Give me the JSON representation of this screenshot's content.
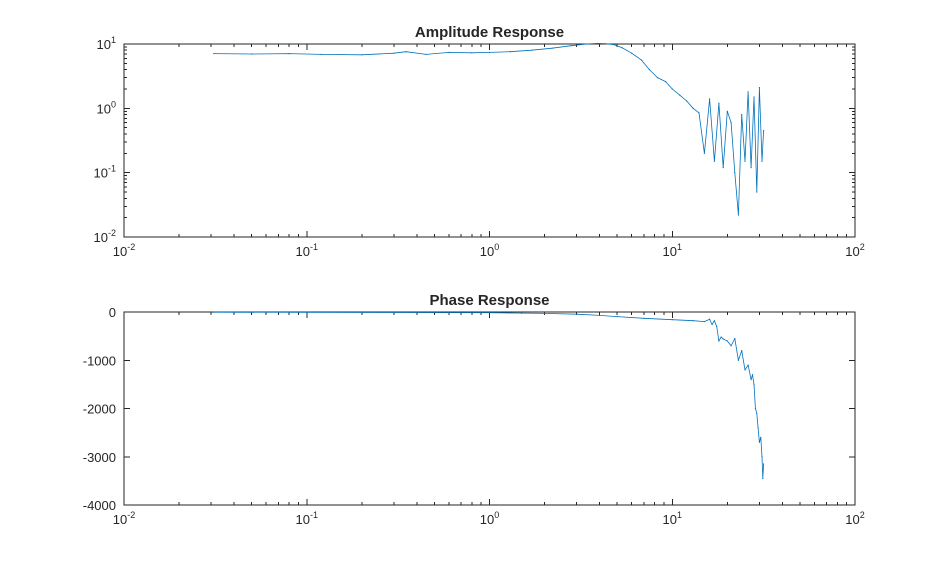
{
  "chart_data": [
    {
      "type": "line",
      "title": "Amplitude Response",
      "xscale": "log",
      "yscale": "log",
      "xlim": [
        0.01,
        100
      ],
      "ylim": [
        0.01,
        10
      ],
      "grid": false,
      "color": "#0072BD",
      "x_tick_labels": [
        {
          "base": "10",
          "exp": "-2"
        },
        {
          "base": "10",
          "exp": "-1"
        },
        {
          "base": "10",
          "exp": "0"
        },
        {
          "base": "10",
          "exp": "1"
        },
        {
          "base": "10",
          "exp": "2"
        }
      ],
      "y_tick_labels": [
        {
          "base": "10",
          "exp": "1"
        },
        {
          "base": "10",
          "exp": "0"
        },
        {
          "base": "10",
          "exp": "-1"
        },
        {
          "base": "10",
          "exp": "-2"
        }
      ],
      "series": [
        {
          "x": [
            0.031,
            0.05,
            0.08,
            0.12,
            0.2,
            0.3,
            0.35,
            0.45,
            0.6,
            0.8,
            1.0,
            1.3,
            1.7,
            2.2,
            2.8,
            3.4,
            3.9,
            4.3,
            4.8,
            5.3,
            6.0,
            6.8,
            7.5,
            8.3,
            9.2,
            10.0,
            11.0,
            12.0,
            13.0,
            14.0,
            15.0,
            16.0,
            17.0,
            18.0,
            19.0,
            20.0,
            21.0,
            22.0,
            23.0,
            24.0,
            25.0,
            26.0,
            27.0,
            28.0,
            29.0,
            30.0,
            31.0,
            31.6
          ],
          "y": [
            7.1,
            7.0,
            7.1,
            6.9,
            6.8,
            7.2,
            7.6,
            6.9,
            7.4,
            7.3,
            7.4,
            7.6,
            8.0,
            8.6,
            9.4,
            10.0,
            10.2,
            10.1,
            9.8,
            8.8,
            7.2,
            5.6,
            4.0,
            3.0,
            2.6,
            2.0,
            1.6,
            1.3,
            1.0,
            0.85,
            0.2,
            1.4,
            0.15,
            1.2,
            0.12,
            0.9,
            0.6,
            0.1,
            0.022,
            0.8,
            0.15,
            1.8,
            0.12,
            1.5,
            0.05,
            2.1,
            0.15,
            0.45
          ]
        }
      ]
    },
    {
      "type": "line",
      "title": "Phase Response",
      "xscale": "log",
      "yscale": "linear",
      "xlim": [
        0.01,
        100
      ],
      "ylim": [
        -4000,
        0
      ],
      "grid": false,
      "color": "#0072BD",
      "x_tick_labels": [
        {
          "base": "10",
          "exp": "-2"
        },
        {
          "base": "10",
          "exp": "-1"
        },
        {
          "base": "10",
          "exp": "0"
        },
        {
          "base": "10",
          "exp": "1"
        },
        {
          "base": "10",
          "exp": "2"
        }
      ],
      "y_tick_labels": [
        "0",
        "-1000",
        "-2000",
        "-3000",
        "-4000"
      ],
      "series": [
        {
          "x": [
            0.031,
            0.1,
            0.3,
            0.6,
            1.0,
            1.5,
            2.0,
            3.0,
            4.0,
            5.0,
            7.0,
            10.0,
            13.0,
            15.0,
            16.0,
            16.5,
            17.0,
            17.5,
            18.0,
            18.5,
            19.0,
            20.0,
            21.0,
            22.0,
            23.0,
            24.0,
            25.0,
            26.0,
            27.0,
            27.5,
            28.0,
            28.5,
            29.0,
            29.5,
            30.0,
            30.5,
            31.0,
            31.3,
            31.6
          ],
          "y": [
            -5,
            -8,
            -10,
            -12,
            -15,
            -22,
            -30,
            -45,
            -70,
            -95,
            -130,
            -160,
            -180,
            -200,
            -150,
            -260,
            -180,
            -300,
            -600,
            -520,
            -560,
            -600,
            -700,
            -550,
            -1000,
            -800,
            -1200,
            -1100,
            -1400,
            -1300,
            -1500,
            -2000,
            -2100,
            -2400,
            -2700,
            -2600,
            -3000,
            -3450,
            -3150
          ]
        }
      ]
    }
  ]
}
